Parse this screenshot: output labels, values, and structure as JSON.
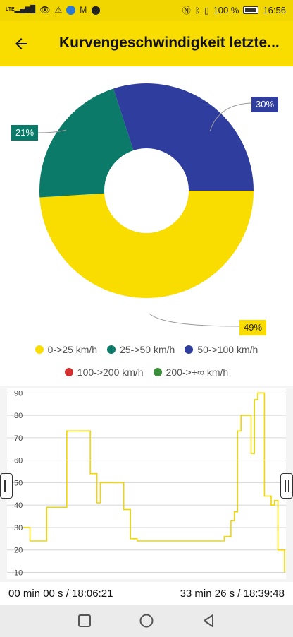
{
  "status_bar": {
    "network": "LTE",
    "battery": "100 %",
    "time": "16:56"
  },
  "app_bar": {
    "title": "Kurvengeschwindigkeit letzte..."
  },
  "donut": {
    "colors": {
      "yellow": "#f9dc00",
      "teal": "#0b7a68",
      "blue": "#2f3e9e",
      "red": "#d32f2f",
      "green": "#3a8f3a"
    },
    "slices": [
      {
        "label": "0->25 km/h",
        "percent": 49,
        "pct_label": "49%",
        "color": "#f9dc00"
      },
      {
        "label": "25->50 km/h",
        "percent": 21,
        "pct_label": "21%",
        "color": "#0b7a68"
      },
      {
        "label": "50->100 km/h",
        "percent": 30,
        "pct_label": "30%",
        "color": "#2f3e9e"
      },
      {
        "label": "100->200 km/h",
        "percent": 0,
        "pct_label": "",
        "color": "#d32f2f"
      },
      {
        "label": "200->+∞ km/h",
        "percent": 0,
        "pct_label": "",
        "color": "#3a8f3a"
      }
    ]
  },
  "chart_data": {
    "type": "line",
    "ylim": [
      7,
      92
    ],
    "y_ticks": [
      "10",
      "20",
      "30",
      "40",
      "50",
      "60",
      "70",
      "80",
      "90"
    ],
    "line_color": "#f2d600",
    "grid": true,
    "series": [
      {
        "values": [
          30,
          30,
          24,
          24,
          24,
          24,
          24,
          39,
          39,
          39,
          39,
          39,
          39,
          73,
          73,
          73,
          73,
          73,
          73,
          73,
          54,
          54,
          41,
          50,
          50,
          50,
          50,
          50,
          50,
          50,
          38,
          38,
          25,
          25,
          24,
          24,
          24,
          24,
          24,
          24,
          24,
          24,
          24,
          24,
          24,
          24,
          24,
          24,
          24,
          24,
          24,
          24,
          24,
          24,
          24,
          24,
          24,
          24,
          24,
          24,
          26,
          26,
          33,
          37,
          73,
          80,
          80,
          80,
          63,
          87,
          90,
          90,
          44,
          44,
          40,
          42,
          20,
          20,
          10
        ]
      }
    ]
  },
  "time": {
    "start": "00 min 00 s / 18:06:21",
    "end": "33 min 26 s / 18:39:48"
  }
}
